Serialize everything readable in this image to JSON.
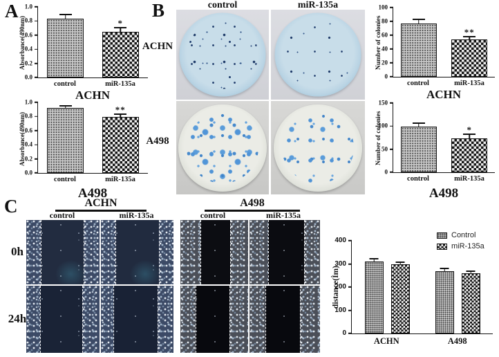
{
  "panels": {
    "a": {
      "label": "A"
    },
    "b": {
      "label": "B",
      "col_labels": [
        "control",
        "miR-135a"
      ],
      "row_labels": [
        "ACHN",
        "A498"
      ]
    },
    "c": {
      "label": "C",
      "row_labels": [
        "0h",
        "24h"
      ],
      "groups": [
        {
          "title": "ACHN",
          "col_labels": [
            "control",
            "miR-135a"
          ]
        },
        {
          "title": "A498",
          "col_labels": [
            "control",
            "miR-135a"
          ]
        }
      ]
    }
  },
  "colors": {
    "axis": "#111111",
    "colony_blue": "#4a90d4",
    "dish_blue": "#bcd6e6"
  },
  "chart_data": [
    {
      "id": "mtt-achn",
      "type": "bar",
      "title": "ACHN",
      "ylabel": "Absorbance(490nm)",
      "ylim": [
        0,
        1.0
      ],
      "grid": false,
      "yticks": [
        {
          "v": 0,
          "label": "0.0"
        },
        {
          "v": 0.2,
          "label": "0.2"
        },
        {
          "v": 0.4,
          "label": "0.4"
        },
        {
          "v": 0.6,
          "label": "0.6"
        },
        {
          "v": 0.8,
          "label": "0.8"
        },
        {
          "v": 1.0,
          "label": "1.0"
        }
      ],
      "groups": [
        {
          "label": "control",
          "bars": [
            {
              "series": "control",
              "pattern": "dots",
              "value": 0.83,
              "error": 0.05,
              "sig": ""
            }
          ]
        },
        {
          "label": "miR-135a",
          "bars": [
            {
              "series": "miR-135a",
              "pattern": "check",
              "value": 0.65,
              "error": 0.05,
              "sig": "*"
            }
          ]
        }
      ]
    },
    {
      "id": "mtt-a498",
      "type": "bar",
      "title": "A498",
      "ylabel": "Absorbance(490nm)",
      "ylim": [
        0,
        1.0
      ],
      "grid": false,
      "yticks": [
        {
          "v": 0,
          "label": "0.0"
        },
        {
          "v": 0.2,
          "label": "0.2"
        },
        {
          "v": 0.4,
          "label": "0.4"
        },
        {
          "v": 0.6,
          "label": "0.6"
        },
        {
          "v": 0.8,
          "label": "0.8"
        },
        {
          "v": 1.0,
          "label": "1.0"
        }
      ],
      "groups": [
        {
          "label": "control",
          "bars": [
            {
              "series": "control",
              "pattern": "dots",
              "value": 0.92,
              "error": 0.025,
              "sig": ""
            }
          ]
        },
        {
          "label": "miR-135a",
          "bars": [
            {
              "series": "miR-135a",
              "pattern": "check",
              "value": 0.79,
              "error": 0.03,
              "sig": "**"
            }
          ]
        }
      ]
    },
    {
      "id": "colonies-achn",
      "type": "bar",
      "title": "ACHN",
      "ylabel": "Number of colonies",
      "ylim": [
        0,
        100
      ],
      "grid": false,
      "yticks": [
        {
          "v": 0,
          "label": "0"
        },
        {
          "v": 20,
          "label": "20"
        },
        {
          "v": 40,
          "label": "40"
        },
        {
          "v": 60,
          "label": "60"
        },
        {
          "v": 80,
          "label": "80"
        },
        {
          "v": 100,
          "label": "100"
        }
      ],
      "groups": [
        {
          "label": "control",
          "bars": [
            {
              "series": "control",
              "pattern": "dots",
              "value": 77,
              "error": 5,
              "sig": ""
            }
          ]
        },
        {
          "label": "miR-135a",
          "bars": [
            {
              "series": "miR-135a",
              "pattern": "check",
              "value": 54,
              "error": 3,
              "sig": "**"
            }
          ]
        }
      ]
    },
    {
      "id": "colonies-a498",
      "type": "bar",
      "title": "A498",
      "ylabel": "Number of colonies",
      "ylim": [
        0,
        150
      ],
      "grid": false,
      "yticks": [
        {
          "v": 0,
          "label": "0"
        },
        {
          "v": 50,
          "label": "50"
        },
        {
          "v": 100,
          "label": "100"
        },
        {
          "v": 150,
          "label": "150"
        }
      ],
      "groups": [
        {
          "label": "control",
          "bars": [
            {
              "series": "control",
              "pattern": "dots",
              "value": 99,
              "error": 6,
              "sig": ""
            }
          ]
        },
        {
          "label": "miR-135a",
          "bars": [
            {
              "series": "miR-135a",
              "pattern": "check",
              "value": 73,
              "error": 8,
              "sig": "*"
            }
          ]
        }
      ]
    },
    {
      "id": "migration-distance",
      "type": "grouped-bar",
      "title": "",
      "ylabel": "distance(Ìm)",
      "ylim": [
        0,
        400
      ],
      "grid": false,
      "legend_position": "top-right",
      "yticks": [
        {
          "v": 0,
          "label": "0"
        },
        {
          "v": 100,
          "label": "100"
        },
        {
          "v": 200,
          "label": "200"
        },
        {
          "v": 300,
          "label": "300"
        },
        {
          "v": 400,
          "label": "400"
        }
      ],
      "legend": [
        {
          "label": "Control",
          "pattern": "dots"
        },
        {
          "label": "miR-135a",
          "pattern": "check"
        }
      ],
      "groups": [
        {
          "label": "ACHN",
          "bars": [
            {
              "series": "Control",
              "pattern": "dots",
              "value": 310,
              "error": 8,
              "sig": ""
            },
            {
              "series": "miR-135a",
              "pattern": "check",
              "value": 300,
              "error": 5,
              "sig": ""
            }
          ]
        },
        {
          "label": "A498",
          "bars": [
            {
              "series": "Control",
              "pattern": "dots",
              "value": 270,
              "error": 7,
              "sig": ""
            },
            {
              "series": "miR-135a",
              "pattern": "check",
              "value": 260,
              "error": 5,
              "sig": ""
            }
          ]
        }
      ]
    }
  ]
}
